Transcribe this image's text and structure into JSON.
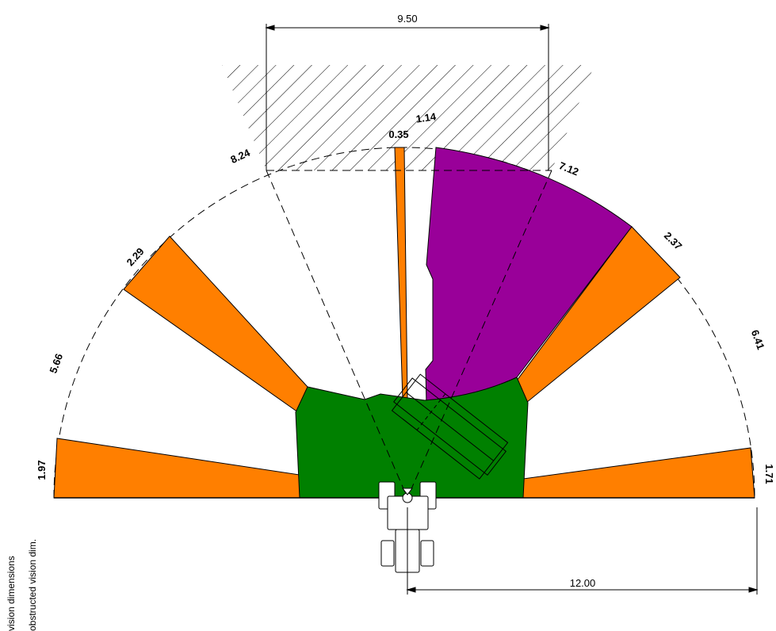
{
  "dimensions": {
    "top_width": "9.50",
    "right_radius": "12.00"
  },
  "sector_labels": {
    "left_bottom": "1.97",
    "left_lower_white": "5.66",
    "left_orange": "2.29",
    "left_upper_white": "8.24",
    "center_thin": "0.35",
    "center_gap": "1.14",
    "right_upper": "7.12",
    "right_orange": "2.37",
    "right_lower_white": "6.41",
    "right_bottom": "1.71"
  },
  "legend": {
    "line1": "vision dimensions",
    "line2": "obstructed vision dim."
  },
  "colors": {
    "orange": "#ff7f00",
    "purple": "#990099",
    "green": "#008000",
    "stroke": "#000000"
  }
}
